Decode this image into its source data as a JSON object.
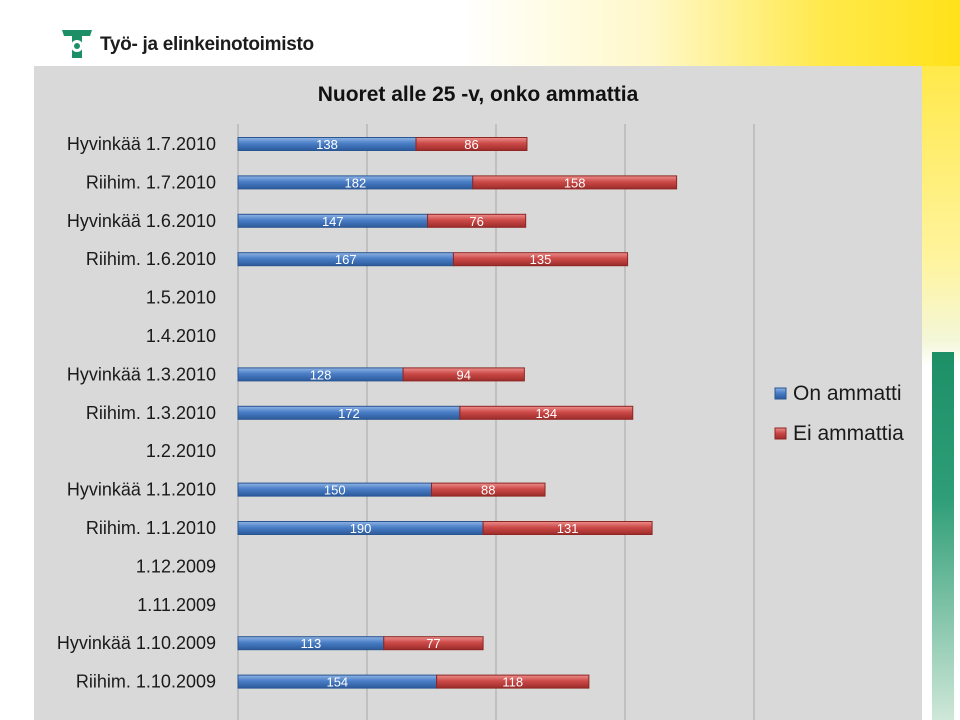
{
  "header": {
    "logo_text": "Työ- ja elinkeinotoimisto"
  },
  "colors": {
    "on_ammatti": "#4a7ec6",
    "ei_ammatti": "#cc4a48",
    "panel_bg": "#d9d9d9",
    "accent_yellow": "#ffe21a",
    "accent_green": "#1d8f67"
  },
  "chart_data": {
    "type": "bar",
    "orientation": "horizontal",
    "stacked": true,
    "title": "Nuoret alle 25 -v, onko ammattia",
    "xlabel": "",
    "ylabel": "",
    "xlim": [
      0,
      400
    ],
    "grid": true,
    "legend_position": "right",
    "categories": [
      "Hyvinkää 1.7.2010",
      "Riihim. 1.7.2010",
      "Hyvinkää 1.6.2010",
      "Riihim. 1.6.2010",
      "1.5.2010",
      "1.4.2010",
      "Hyvinkää 1.3.2010",
      "Riihim. 1.3.2010",
      "1.2.2010",
      "Hyvinkää 1.1.2010",
      "Riihim. 1.1.2010",
      "1.12.2009",
      "1.11.2009",
      "Hyvinkää 1.10.2009",
      "Riihim. 1.10.2009"
    ],
    "series": [
      {
        "name": "On ammatti",
        "values": [
          138,
          182,
          147,
          167,
          null,
          null,
          128,
          172,
          null,
          150,
          190,
          null,
          null,
          113,
          154
        ]
      },
      {
        "name": "Ei ammattia",
        "values": [
          86,
          158,
          76,
          135,
          null,
          null,
          94,
          134,
          null,
          88,
          131,
          null,
          null,
          77,
          118
        ]
      }
    ]
  }
}
